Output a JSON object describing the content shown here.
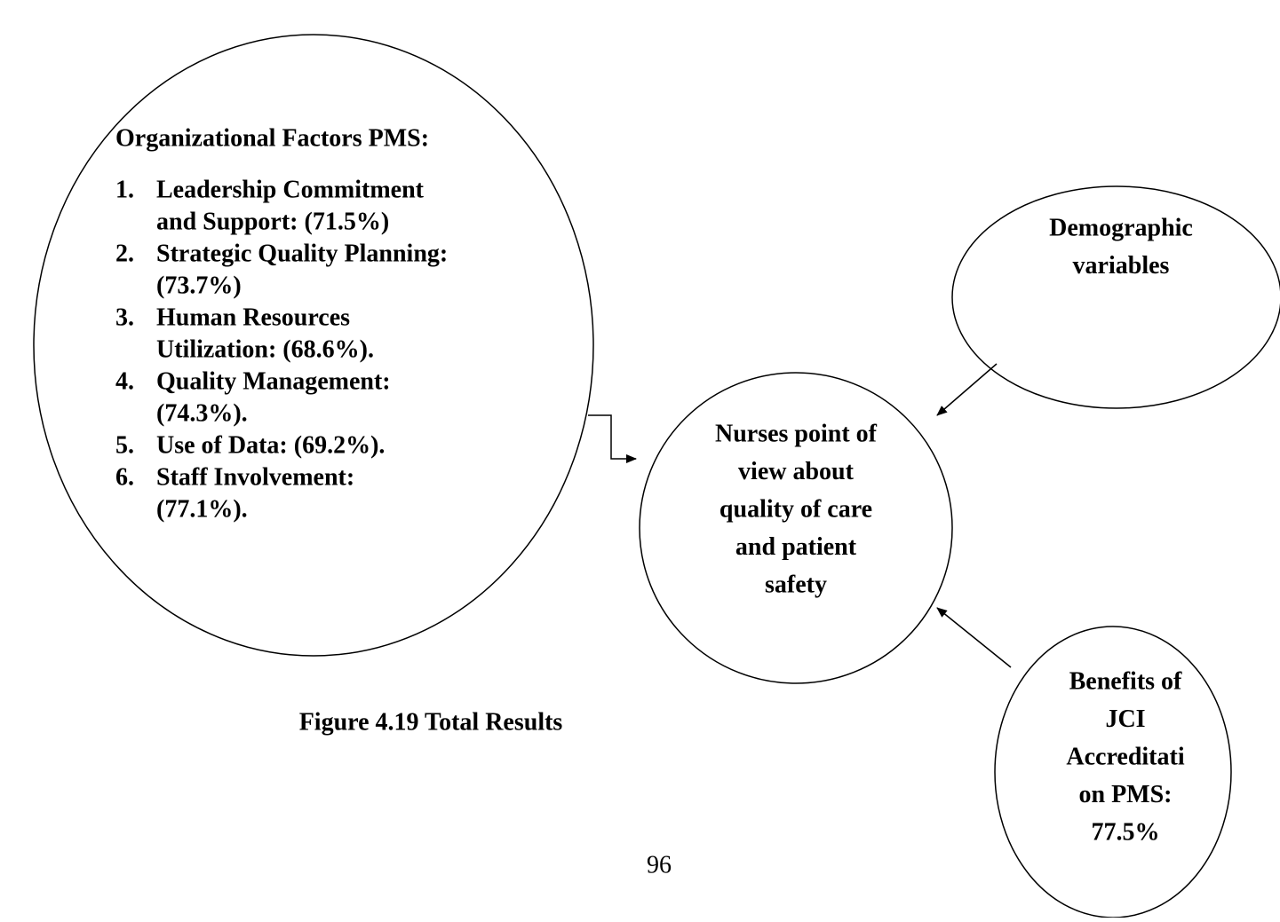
{
  "factors": {
    "heading": "Organizational Factors PMS:",
    "items": [
      {
        "number": "1.",
        "lines": [
          "Leadership Commitment",
          "and Support: (71.5%)"
        ]
      },
      {
        "number": "2.",
        "lines": [
          "Strategic Quality Planning:",
          "(73.7%)"
        ]
      },
      {
        "number": "3.",
        "lines": [
          "Human Resources",
          "Utilization: (68.6%)."
        ]
      },
      {
        "number": "4.",
        "lines": [
          "Quality Management:",
          "(74.3%)."
        ]
      },
      {
        "number": "5.",
        "lines": [
          "Use of Data: (69.2%)."
        ]
      },
      {
        "number": "6.",
        "lines": [
          "Staff Involvement:",
          "(77.1%)."
        ]
      }
    ]
  },
  "nodes": [
    {
      "lines": [
        "Demographic",
        "variables"
      ]
    },
    {
      "lines": [
        "Nurses point of",
        "view about",
        "quality of care",
        "and patient",
        "safety"
      ]
    },
    {
      "lines": [
        "Benefits of",
        "JCI",
        "Accreditati",
        "on PMS:",
        "77.5%"
      ]
    }
  ],
  "caption": "Figure 4.19 Total Results",
  "page_number": "96"
}
